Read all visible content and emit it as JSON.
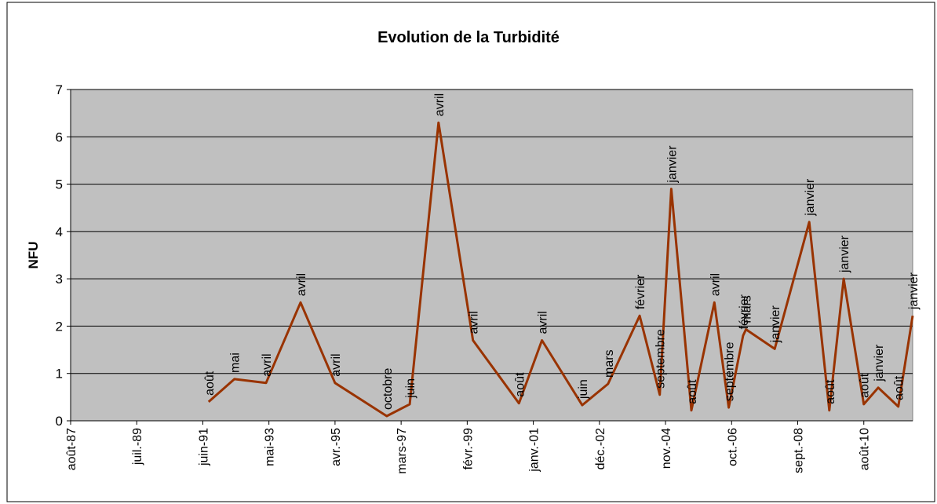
{
  "chart_data": {
    "type": "line",
    "title": "Evolution de la Turbidité",
    "y_label": "NFU",
    "xlim": [
      "1987-08",
      "2012-01"
    ],
    "xticks": [
      {
        "value": "1987-08",
        "label": "août-87"
      },
      {
        "value": "1989-07",
        "label": "juil.-89"
      },
      {
        "value": "1991-06",
        "label": "juin-91"
      },
      {
        "value": "1993-05",
        "label": "mai-93"
      },
      {
        "value": "1995-04",
        "label": "avr.-95"
      },
      {
        "value": "1997-03",
        "label": "mars-97"
      },
      {
        "value": "1999-02",
        "label": "févr.-99"
      },
      {
        "value": "2001-01",
        "label": "janv.-01"
      },
      {
        "value": "2002-12",
        "label": "déc.-02"
      },
      {
        "value": "2004-11",
        "label": "nov.-04"
      },
      {
        "value": "2006-10",
        "label": "oct.-06"
      },
      {
        "value": "2008-09",
        "label": "sept.-08"
      },
      {
        "value": "2010-08",
        "label": "août-10"
      }
    ],
    "ylim": [
      0,
      7
    ],
    "yticks": [
      0,
      1,
      2,
      3,
      4,
      5,
      6,
      7
    ],
    "grid": true,
    "x": [
      "1991-08",
      "1992-05",
      "1993-04",
      "1994-04",
      "1995-04",
      "1996-10",
      "1997-06",
      "1998-04",
      "1999-04",
      "2000-08",
      "2001-04",
      "2002-06",
      "2003-03",
      "2004-02",
      "2004-09",
      "2005-01",
      "2005-08",
      "2006-04",
      "2006-09",
      "2007-02",
      "2007-03",
      "2008-01",
      "2009-01",
      "2009-08",
      "2010-01",
      "2010-08",
      "2011-01",
      "2011-08",
      "2012-01"
    ],
    "series": [
      {
        "name": "Turbidité",
        "color": "#993300",
        "values": [
          0.4,
          0.88,
          0.8,
          2.5,
          0.8,
          0.1,
          0.35,
          6.3,
          1.7,
          0.37,
          1.7,
          0.33,
          0.78,
          2.22,
          0.55,
          4.9,
          0.22,
          2.5,
          0.28,
          1.8,
          1.93,
          1.52,
          4.2,
          0.22,
          3.0,
          0.35,
          0.7,
          0.3,
          2.22
        ],
        "value_labels": [
          "août",
          "mai",
          "avril",
          "avril",
          "avril",
          "octobre",
          "juin",
          "avril",
          "avril",
          "août",
          "avril",
          "juin",
          "mars",
          "février",
          "septembre",
          "janvier",
          "août",
          "avril",
          "septembre",
          "février",
          "mars",
          "janvier",
          "janvier",
          "août",
          "janvier",
          "août",
          "janvier",
          "août",
          "janvier"
        ]
      }
    ]
  }
}
